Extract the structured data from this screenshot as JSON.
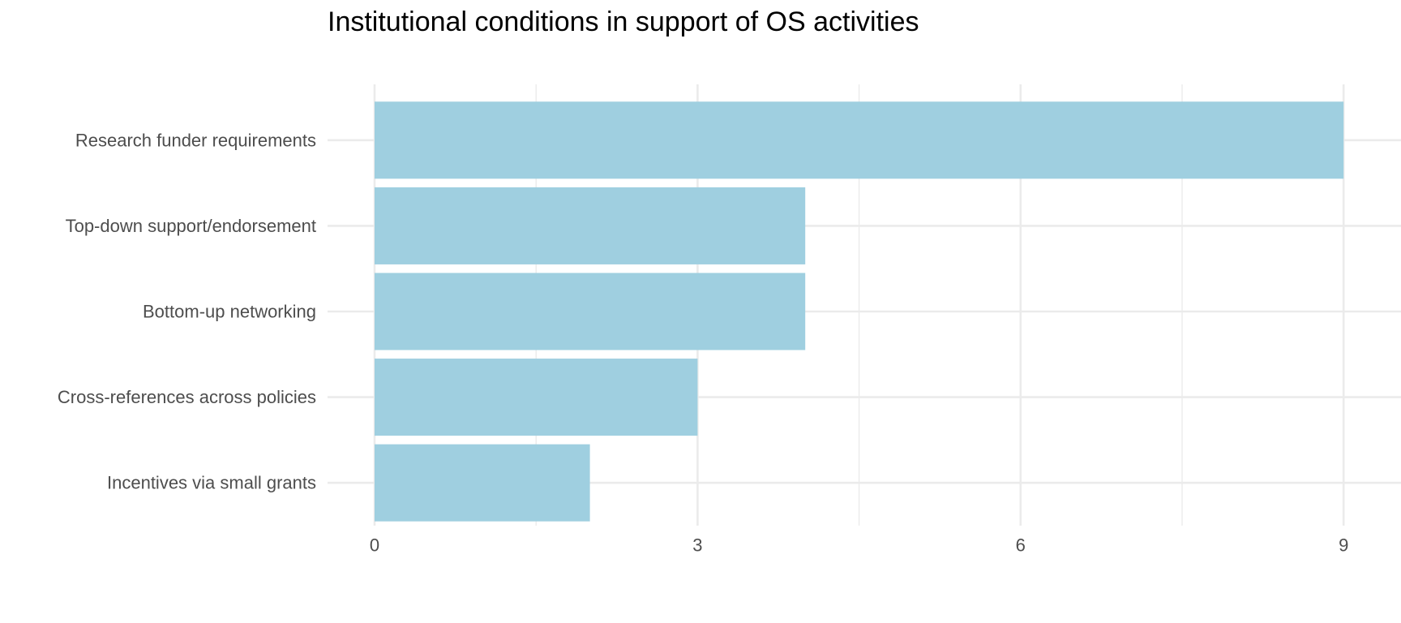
{
  "chart_data": {
    "type": "bar",
    "orientation": "horizontal",
    "title": "Institutional conditions in support of OS activities",
    "xlabel": "",
    "ylabel": "",
    "categories": [
      "Research funder requirements",
      "Top-down support/endorsement",
      "Bottom-up networking",
      "Cross-references across policies",
      "Incentives via small grants"
    ],
    "values": [
      9,
      4,
      4,
      3,
      2
    ],
    "xlim": [
      0,
      9.45
    ],
    "x_ticks": [
      0,
      3,
      6,
      9
    ],
    "grid": true,
    "legend": "none",
    "bar_color": "#9fcfe0",
    "grid_color": "#ebebeb",
    "tick_label_color": "#4d4d4d"
  }
}
